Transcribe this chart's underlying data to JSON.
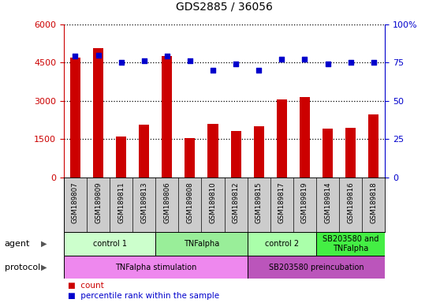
{
  "title": "GDS2885 / 36056",
  "samples": [
    "GSM189807",
    "GSM189809",
    "GSM189811",
    "GSM189813",
    "GSM189806",
    "GSM189808",
    "GSM189810",
    "GSM189812",
    "GSM189815",
    "GSM189817",
    "GSM189819",
    "GSM189814",
    "GSM189816",
    "GSM189818"
  ],
  "counts": [
    4700,
    5050,
    1600,
    2050,
    4750,
    1550,
    2100,
    1800,
    2000,
    3050,
    3150,
    1900,
    1950,
    2450
  ],
  "percentile": [
    79,
    80,
    75,
    76,
    79,
    76,
    70,
    74,
    70,
    77,
    77,
    74,
    75,
    75
  ],
  "ylim_left": [
    0,
    6000
  ],
  "ylim_right": [
    0,
    100
  ],
  "yticks_left": [
    0,
    1500,
    3000,
    4500,
    6000
  ],
  "ytick_labels_left": [
    "0",
    "1500",
    "3000",
    "4500",
    "6000"
  ],
  "yticks_right": [
    0,
    25,
    50,
    75,
    100
  ],
  "ytick_labels_right": [
    "0",
    "25",
    "50",
    "75",
    "100%"
  ],
  "bar_color": "#cc0000",
  "scatter_color": "#0000cc",
  "agent_groups": [
    {
      "label": "control 1",
      "start": 0,
      "end": 4,
      "color": "#ccffcc"
    },
    {
      "label": "TNFalpha",
      "start": 4,
      "end": 8,
      "color": "#99ee99"
    },
    {
      "label": "control 2",
      "start": 8,
      "end": 11,
      "color": "#aaffaa"
    },
    {
      "label": "SB203580 and\nTNFalpha",
      "start": 11,
      "end": 14,
      "color": "#44ee44"
    }
  ],
  "protocol_groups": [
    {
      "label": "TNFalpha stimulation",
      "start": 0,
      "end": 8,
      "color": "#ee88ee"
    },
    {
      "label": "SB203580 preincubation",
      "start": 8,
      "end": 14,
      "color": "#bb55bb"
    }
  ],
  "agent_label": "agent",
  "protocol_label": "protocol",
  "legend_count_label": "count",
  "legend_pct_label": "percentile rank within the sample",
  "background_color": "#ffffff",
  "sample_bg_color": "#cccccc",
  "grid_color": "#000000"
}
